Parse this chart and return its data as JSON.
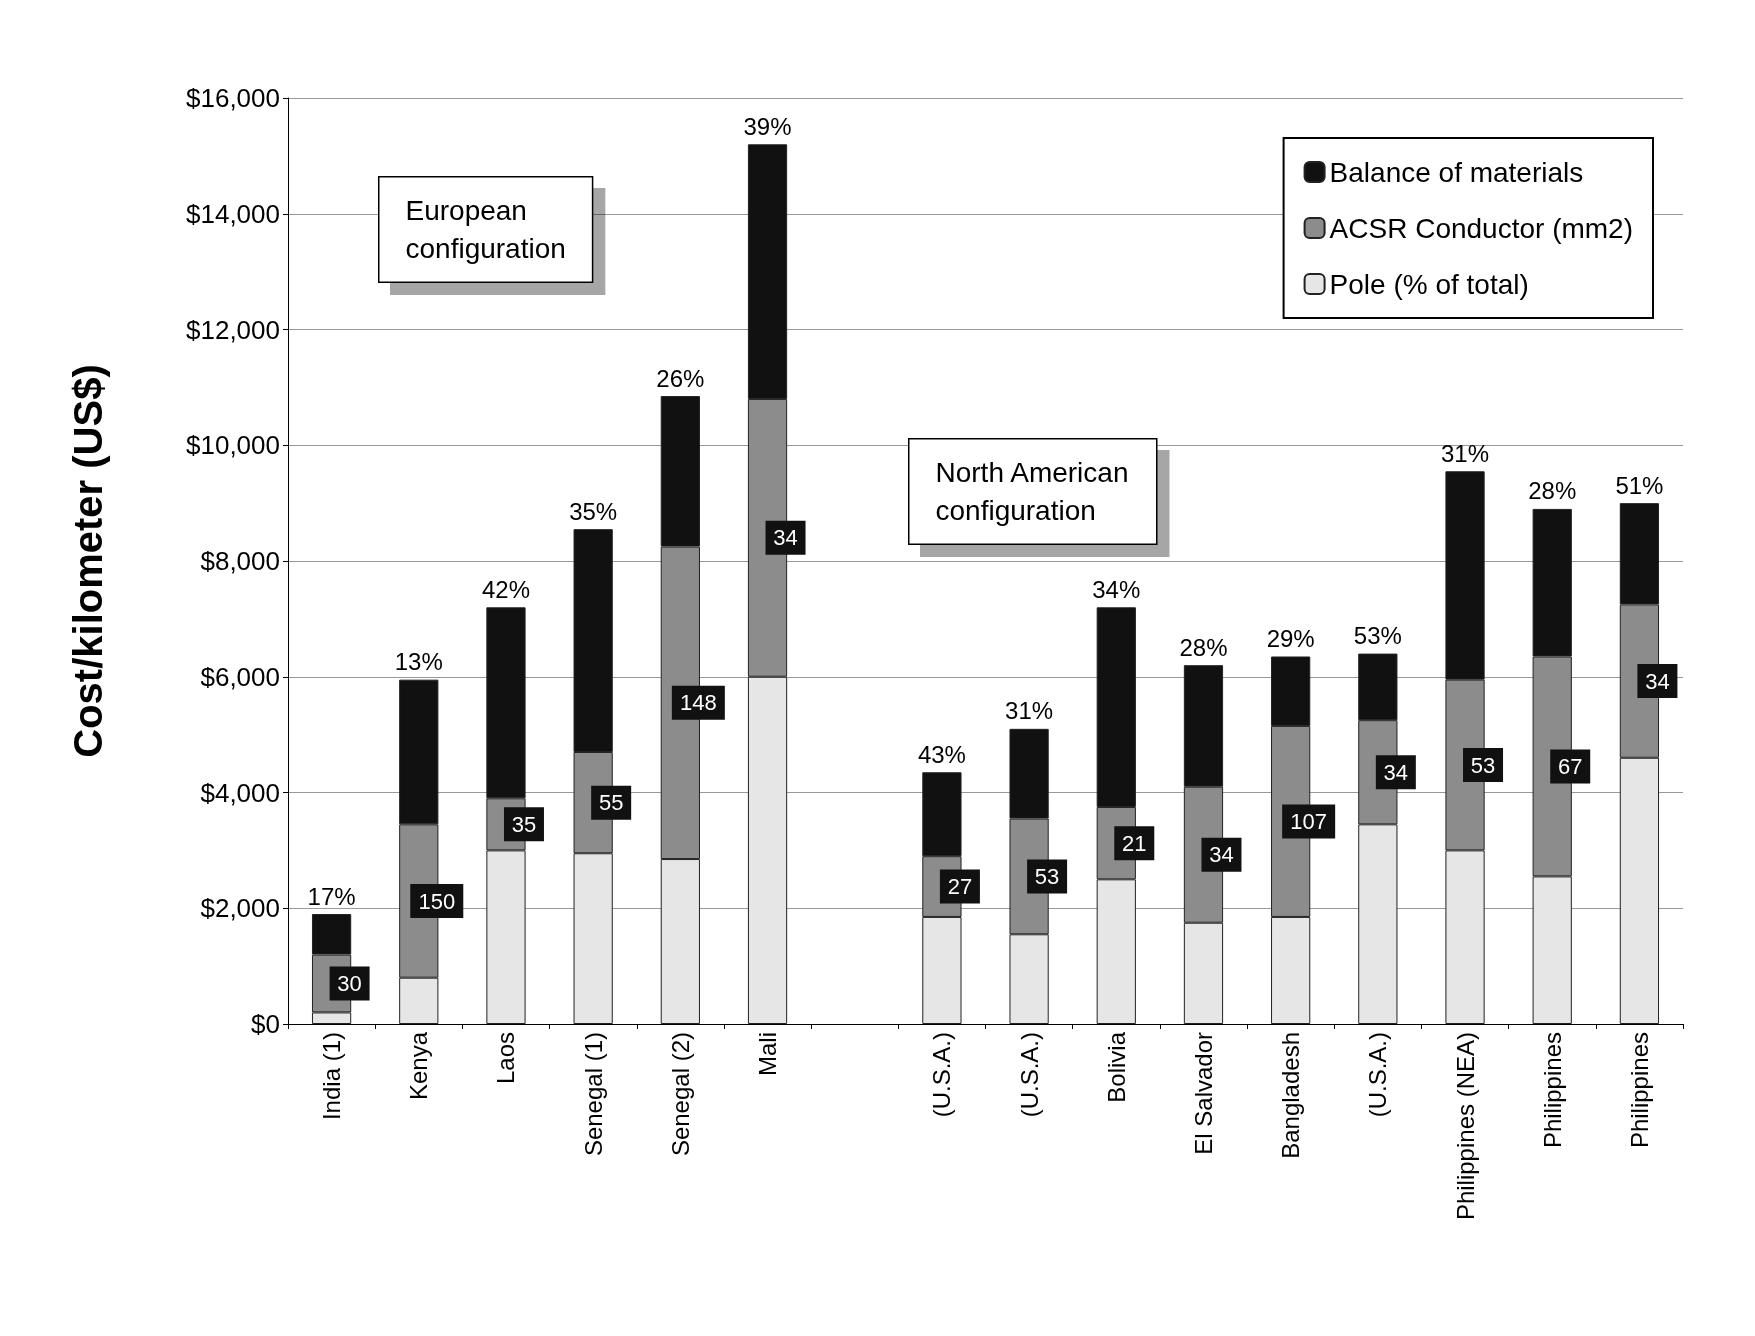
{
  "chart_data": {
    "type": "bar",
    "stacked": true,
    "ylabel": "Cost/kilometer (US$)",
    "categories": [
      "India (1)",
      "Kenya",
      "Laos",
      "Senegal (1)",
      "Senegal (2)",
      "Mali",
      null,
      "(U.S.A.)",
      "(U.S.A.)",
      "Bolivia",
      "El Salvador",
      "Bangladesh",
      "(U.S.A.)",
      "Philippines (NEA)",
      "Philippines",
      "Philippines"
    ],
    "series": [
      {
        "name": "Pole (% of total)",
        "color": "#e6e6e6",
        "values": [
          200,
          800,
          3000,
          2950,
          2850,
          6000,
          null,
          1850,
          1550,
          2500,
          1750,
          1850,
          3450,
          3000,
          2550,
          4600
        ]
      },
      {
        "name": "ACSR Conductor (mm2)",
        "color": "#8c8c8c",
        "values": [
          1000,
          2650,
          900,
          1750,
          5400,
          4800,
          null,
          1050,
          2000,
          1250,
          2350,
          3300,
          1800,
          2950,
          3800,
          2650
        ]
      },
      {
        "name": "Balance of materials",
        "color": "#111111",
        "values": [
          700,
          2500,
          3300,
          3850,
          2600,
          4400,
          null,
          1450,
          1550,
          3450,
          2100,
          1200,
          1150,
          3600,
          2550,
          1750
        ]
      }
    ],
    "ylim": [
      0,
      16000
    ],
    "yticks": [
      {
        "value": 0,
        "label": "$0"
      },
      {
        "value": 2000,
        "label": "$2,000"
      },
      {
        "value": 4000,
        "label": "$4,000"
      },
      {
        "value": 6000,
        "label": "$6,000"
      },
      {
        "value": 8000,
        "label": "$8,000"
      },
      {
        "value": 10000,
        "label": "$10,000"
      },
      {
        "value": 12000,
        "label": "$12,000"
      },
      {
        "value": 14000,
        "label": "$14,000"
      },
      {
        "value": 16000,
        "label": "$16,000"
      }
    ],
    "grid": "y",
    "legend": "top right",
    "annotations": [
      "European configuration",
      "North American configuration",
      "17%",
      "13%",
      "42%",
      "35%",
      "26%",
      "39%",
      "43%",
      "31%",
      "34%",
      "28%",
      "29%",
      "53%",
      "31%",
      "28%",
      "51%",
      "30",
      "150",
      "35",
      "55",
      "148",
      "34",
      "27",
      "53",
      "21",
      "34",
      "107",
      "34",
      "53",
      "67",
      "34"
    ]
  }
}
